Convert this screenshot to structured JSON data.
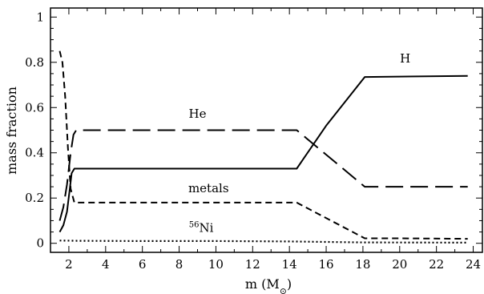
{
  "chart_data": {
    "type": "line",
    "xlabel": "m (M",
    "xlabel_sub": "⊙",
    "xlabel_close": ")",
    "ylabel": "mass fraction",
    "xlim": [
      1.0,
      24.5
    ],
    "ylim": [
      -0.04,
      1.04
    ],
    "x_ticks": [
      2,
      4,
      6,
      8,
      10,
      12,
      14,
      16,
      18,
      20,
      22,
      24
    ],
    "y_ticks": [
      0,
      0.2,
      0.4,
      0.6,
      0.8,
      1
    ],
    "x_tick_labels": [
      "2",
      "4",
      "6",
      "8",
      "10",
      "12",
      "14",
      "16",
      "18",
      "20",
      "22",
      "24"
    ],
    "y_tick_labels": [
      "0",
      "0.2",
      "0.4",
      "0.6",
      "0.8",
      "1"
    ],
    "grid": false,
    "series": [
      {
        "name": "H",
        "style": "solid",
        "x": [
          1.5,
          1.7,
          1.9,
          2.05,
          2.15,
          2.3,
          6,
          10,
          14.4,
          16,
          18.1,
          20,
          23.7
        ],
        "y": [
          0.05,
          0.08,
          0.14,
          0.24,
          0.31,
          0.33,
          0.33,
          0.33,
          0.33,
          0.52,
          0.735,
          0.737,
          0.74
        ]
      },
      {
        "name": "He",
        "style": "long-dash",
        "x": [
          1.5,
          1.7,
          1.9,
          2.1,
          2.25,
          2.4,
          6,
          10,
          14.4,
          18.1,
          20,
          23.7
        ],
        "y": [
          0.1,
          0.16,
          0.26,
          0.4,
          0.48,
          0.5,
          0.5,
          0.5,
          0.5,
          0.25,
          0.25,
          0.25
        ]
      },
      {
        "name": "metals",
        "style": "short-dash",
        "x": [
          1.5,
          1.65,
          1.8,
          1.95,
          2.1,
          2.3,
          6,
          10,
          14.4,
          18.1,
          20,
          23.7
        ],
        "y": [
          0.85,
          0.8,
          0.65,
          0.42,
          0.24,
          0.18,
          0.18,
          0.18,
          0.18,
          0.022,
          0.022,
          0.02
        ]
      },
      {
        "name": "56Ni",
        "label_superscript": "56",
        "label_main": "Ni",
        "style": "dotted",
        "x": [
          1.5,
          2.5,
          6,
          10,
          14,
          18,
          23.7
        ],
        "y": [
          0.012,
          0.011,
          0.01,
          0.01,
          0.008,
          0.004,
          0.003
        ]
      }
    ],
    "annotations": [
      {
        "text": "H",
        "series": "H",
        "x": 20.3,
        "y": 0.8
      },
      {
        "text": "He",
        "series": "He",
        "x": 9.0,
        "y": 0.555
      },
      {
        "text": "metals",
        "series": "metals",
        "x": 9.6,
        "y": 0.225
      },
      {
        "text": "56Ni",
        "series": "56Ni",
        "x": 9.2,
        "y": 0.05
      }
    ]
  }
}
